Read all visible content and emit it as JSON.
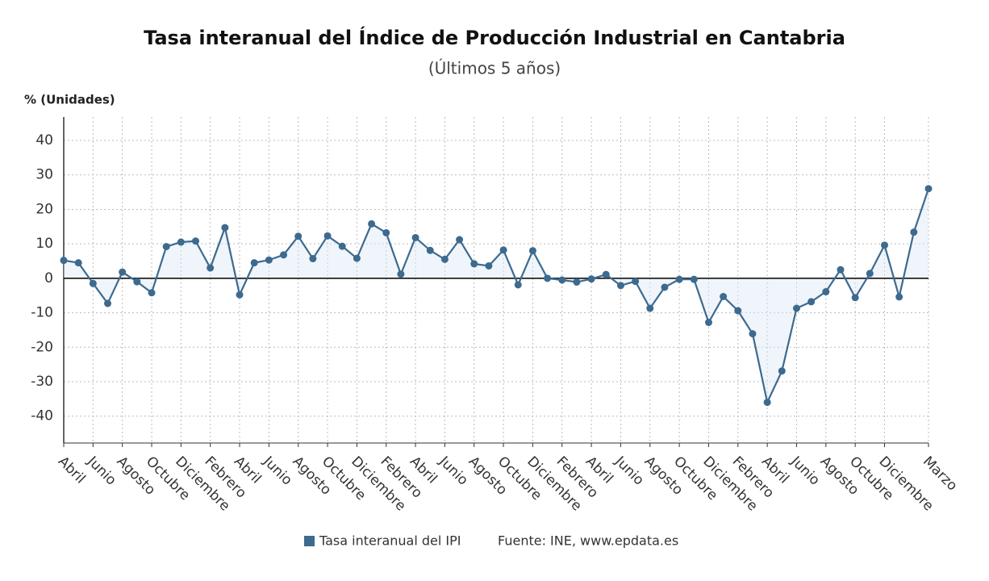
{
  "chart_data": {
    "type": "line",
    "title": "Tasa interanual del Índice de Producción Industrial en Cantabria",
    "subtitle": "(Últimos 5 años)",
    "y_label": "% (Unidades)",
    "source": "Fuente: INE, www.epdata.es",
    "categories": [
      "Abril",
      null,
      "Junio",
      null,
      "Agosto",
      null,
      "Octubre",
      null,
      "Diciembre",
      null,
      "Febrero",
      null,
      "Abril",
      null,
      "Junio",
      null,
      "Agosto",
      null,
      "Octubre",
      null,
      "Diciembre",
      null,
      "Febrero",
      null,
      "Abril",
      null,
      "Junio",
      null,
      "Agosto",
      null,
      "Octubre",
      null,
      "Diciembre",
      null,
      "Febrero",
      null,
      "Abril",
      null,
      "Junio",
      null,
      "Agosto",
      null,
      "Octubre",
      null,
      "Diciembre",
      null,
      "Febrero",
      null,
      "Abril",
      null,
      "Junio",
      null,
      "Agosto",
      null,
      "Octubre",
      null,
      "Diciembre",
      null,
      null,
      "Marzo"
    ],
    "series": [
      {
        "name": "Tasa interanual del IPI",
        "color": "#3d6a8f",
        "values": [
          5.2,
          4.5,
          -1.5,
          -7.3,
          1.8,
          -1,
          -4.2,
          9.2,
          10.5,
          10.8,
          3.0,
          14.7,
          -4.8,
          4.5,
          5.3,
          6.8,
          12.2,
          5.7,
          12.3,
          9.3,
          5.8,
          15.8,
          13.2,
          1.2,
          11.8,
          8.1,
          5.5,
          11.2,
          4.2,
          3.6,
          8.2,
          -1.9,
          8.0,
          0,
          -0.5,
          -1.1,
          -0.2,
          1.1,
          -2.1,
          -0.9,
          -8.7,
          -2.6,
          -0.3,
          -0.3,
          -12.8,
          -5.3,
          -9.4,
          -16.1,
          -36,
          -26.9,
          -8.7,
          -6.8,
          -3.9,
          2.5,
          -5.6,
          1.4,
          9.6,
          -5.4,
          13.4,
          26
        ]
      }
    ],
    "ylim": [
      -47.8,
      46.8
    ],
    "yticks": [
      -40,
      -30,
      -20,
      -10,
      0,
      10,
      20,
      30,
      40
    ],
    "grid": true
  }
}
